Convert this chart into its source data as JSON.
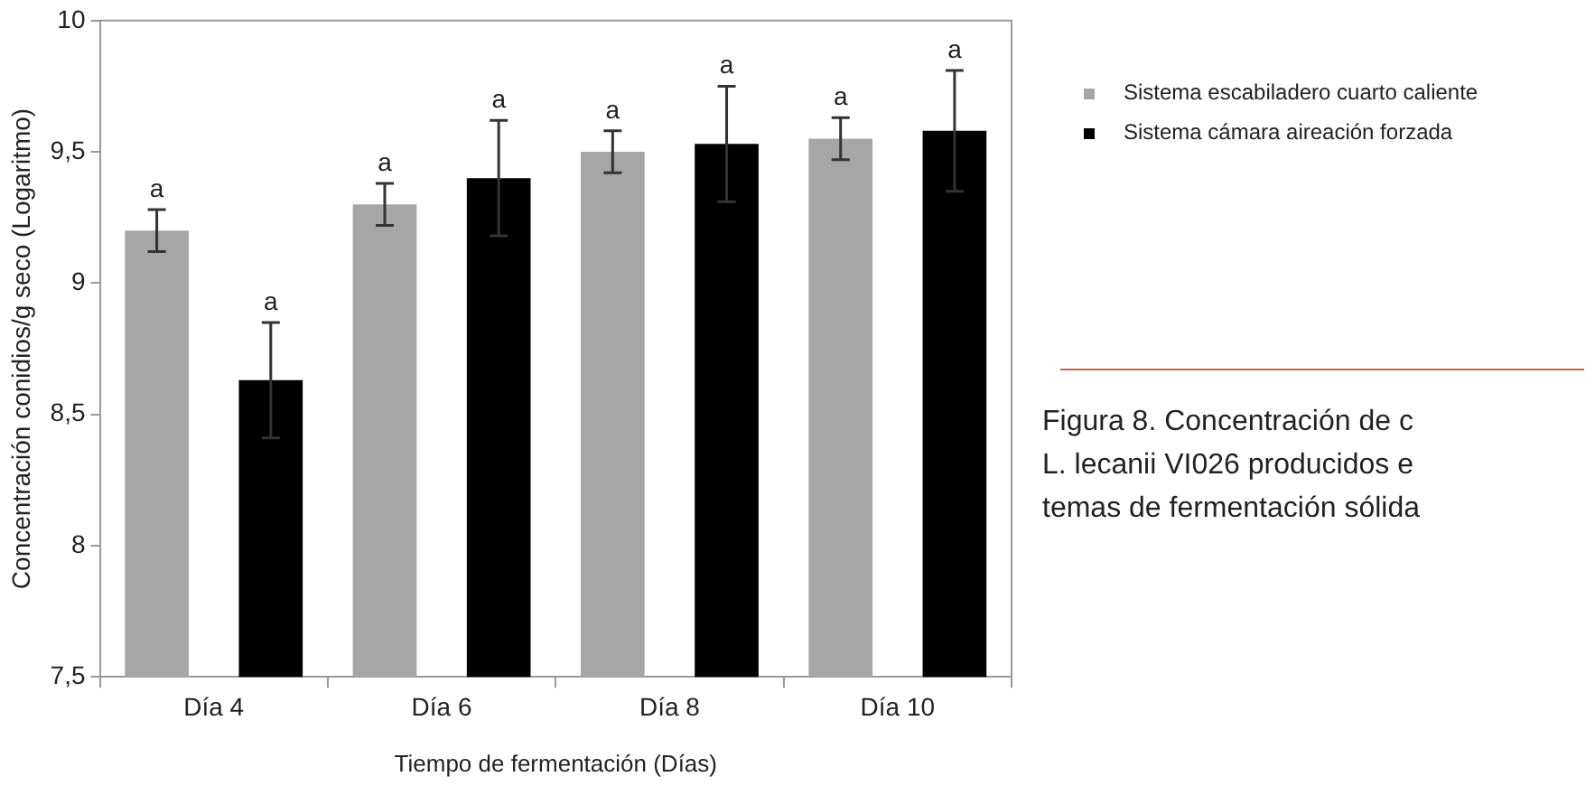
{
  "chart_data": {
    "type": "bar",
    "xlabel": "Tiempo de fermentación (Días)",
    "ylabel": "Concentración conidios/g seco (Logaritmo)",
    "categories": [
      "Día 4",
      "Día 6",
      "Día 8",
      "Día 10"
    ],
    "series": [
      {
        "name": "Sistema escabiladero cuarto caliente",
        "color": "#a6a6a6",
        "values": [
          9.2,
          9.3,
          9.5,
          9.55
        ],
        "errors": [
          0.08,
          0.08,
          0.08,
          0.08
        ],
        "value_labels": [
          "a",
          "a",
          "a",
          "a"
        ]
      },
      {
        "name": "Sistema cámara aireación forzada",
        "color": "#000000",
        "values": [
          8.63,
          9.4,
          9.53,
          9.58
        ],
        "errors": [
          0.22,
          0.22,
          0.22,
          0.23
        ],
        "value_labels": [
          "a",
          "a",
          "a",
          "a"
        ]
      }
    ],
    "ylim": [
      7.5,
      10
    ],
    "yticks": [
      {
        "value": 7.5,
        "label": "7,5"
      },
      8,
      {
        "value": 8.5,
        "label": "8,5"
      },
      9,
      {
        "value": 9.5,
        "label": "9,5"
      },
      10
    ],
    "grid": false,
    "legend": "top right",
    "annotations": [
      "Figura 8. Concentración de c",
      "L. lecanii VI026 producidos e",
      "temas de fermentación sólida"
    ]
  }
}
